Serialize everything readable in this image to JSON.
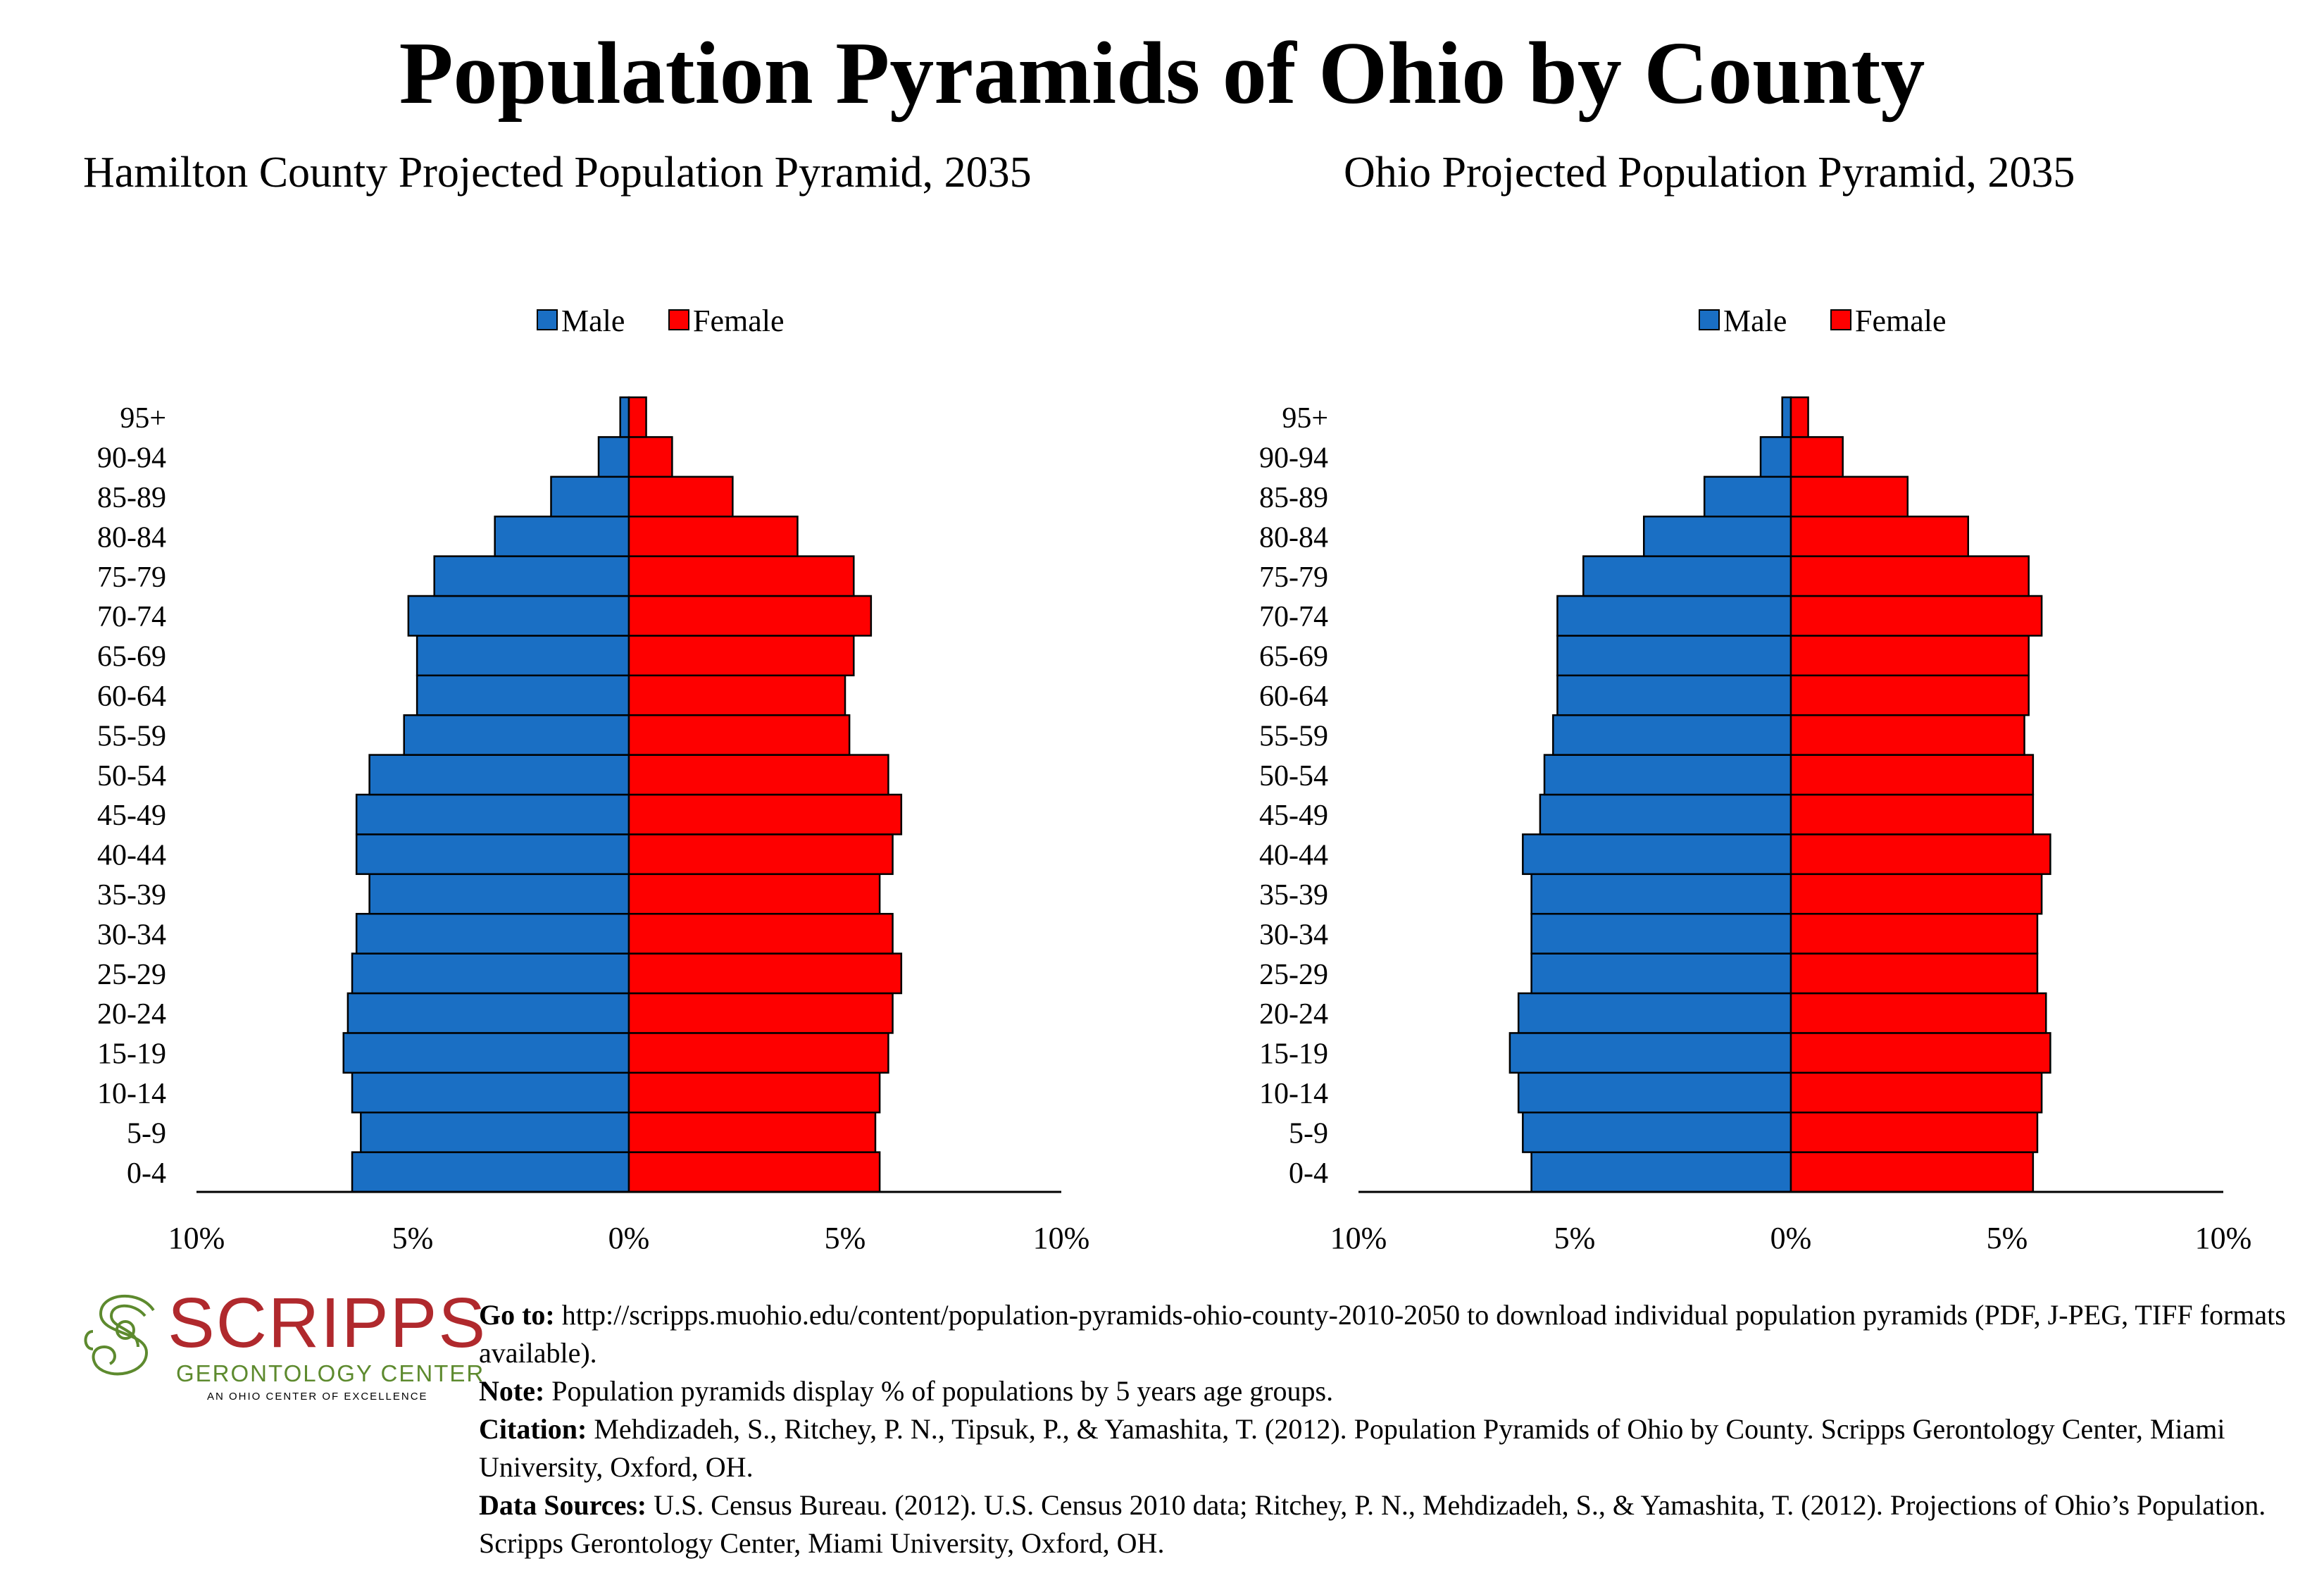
{
  "title": "Population Pyramids of Ohio by County",
  "legend": {
    "male": "Male",
    "female": "Female"
  },
  "colors": {
    "male": "#1a6fc4",
    "female": "#fe0000"
  },
  "logo": {
    "name": "SCRIPPS",
    "subtitle": "GERONTOLOGY CENTER",
    "tagline": "AN OHIO CENTER OF EXCELLENCE"
  },
  "notes": {
    "goto_label": "Go to:",
    "goto_text": "http://scripps.muohio.edu/content/population-pyramids-ohio-county-2010-2050 to download individual population pyramids (PDF, J-PEG, TIFF formats available).",
    "note_label": "Note:",
    "note_text": "Population pyramids display % of populations by 5 years age groups.",
    "citation_label": "Citation:",
    "citation_text": "Mehdizadeh, S., Ritchey, P. N., Tipsuk, P., & Yamashita, T. (2012). Population Pyramids of Ohio by County. Scripps Gerontology Center, Miami University, Oxford, OH.",
    "sources_label": "Data Sources:",
    "sources_text": "U.S. Census Bureau. (2012). U.S. Census 2010 data; Ritchey, P. N., Mehdizadeh, S., & Yamashita, T. (2012). Projections of Ohio’s Population. Scripps Gerontology Center, Miami University, Oxford, OH."
  },
  "chart_data": [
    {
      "type": "bar",
      "title": "Hamilton County Projected Population Pyramid, 2035",
      "categories": [
        "0-4",
        "5-9",
        "10-14",
        "15-19",
        "20-24",
        "25-29",
        "30-34",
        "35-39",
        "40-44",
        "45-49",
        "50-54",
        "55-59",
        "60-64",
        "65-69",
        "70-74",
        "75-79",
        "80-84",
        "85-89",
        "90-94",
        "95+"
      ],
      "x_ticks": [
        "10%",
        "5%",
        "0%",
        "5%",
        "10%"
      ],
      "xlim": [
        -10,
        10
      ],
      "legend_position": "top-center",
      "series": [
        {
          "name": "Male",
          "values": [
            6.4,
            6.2,
            6.4,
            6.6,
            6.5,
            6.4,
            6.3,
            6.0,
            6.3,
            6.3,
            6.0,
            5.2,
            4.9,
            4.9,
            5.1,
            4.5,
            3.1,
            1.8,
            0.7,
            0.2
          ]
        },
        {
          "name": "Female",
          "values": [
            5.8,
            5.7,
            5.8,
            6.0,
            6.1,
            6.3,
            6.1,
            5.8,
            6.1,
            6.3,
            6.0,
            5.1,
            5.0,
            5.2,
            5.6,
            5.2,
            3.9,
            2.4,
            1.0,
            0.4
          ]
        }
      ]
    },
    {
      "type": "bar",
      "title": "Ohio Projected Population Pyramid, 2035",
      "categories": [
        "0-4",
        "5-9",
        "10-14",
        "15-19",
        "20-24",
        "25-29",
        "30-34",
        "35-39",
        "40-44",
        "45-49",
        "50-54",
        "55-59",
        "60-64",
        "65-69",
        "70-74",
        "75-79",
        "80-84",
        "85-89",
        "90-94",
        "95+"
      ],
      "x_ticks": [
        "10%",
        "5%",
        "0%",
        "5%",
        "10%"
      ],
      "xlim": [
        -10,
        10
      ],
      "legend_position": "top-center",
      "series": [
        {
          "name": "Male",
          "values": [
            6.0,
            6.2,
            6.3,
            6.5,
            6.3,
            6.0,
            6.0,
            6.0,
            6.2,
            5.8,
            5.7,
            5.5,
            5.4,
            5.4,
            5.4,
            4.8,
            3.4,
            2.0,
            0.7,
            0.2
          ]
        },
        {
          "name": "Female",
          "values": [
            5.6,
            5.7,
            5.8,
            6.0,
            5.9,
            5.7,
            5.7,
            5.8,
            6.0,
            5.6,
            5.6,
            5.4,
            5.5,
            5.5,
            5.8,
            5.5,
            4.1,
            2.7,
            1.2,
            0.4
          ]
        }
      ]
    }
  ]
}
